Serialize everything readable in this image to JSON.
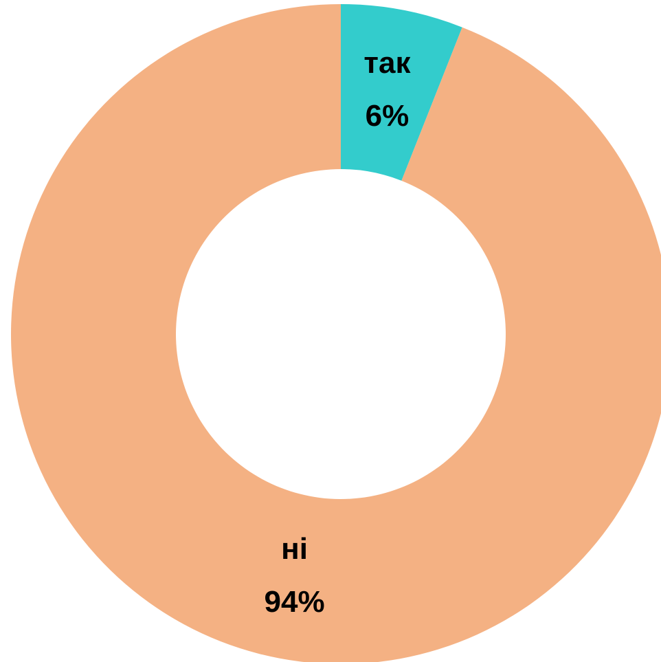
{
  "chart_data": {
    "type": "donut",
    "categories": [
      "так",
      "ні"
    ],
    "values": [
      6,
      94
    ],
    "value_labels": [
      "6%",
      "94%"
    ],
    "colors": [
      "#33cccc",
      "#f4b183"
    ]
  }
}
